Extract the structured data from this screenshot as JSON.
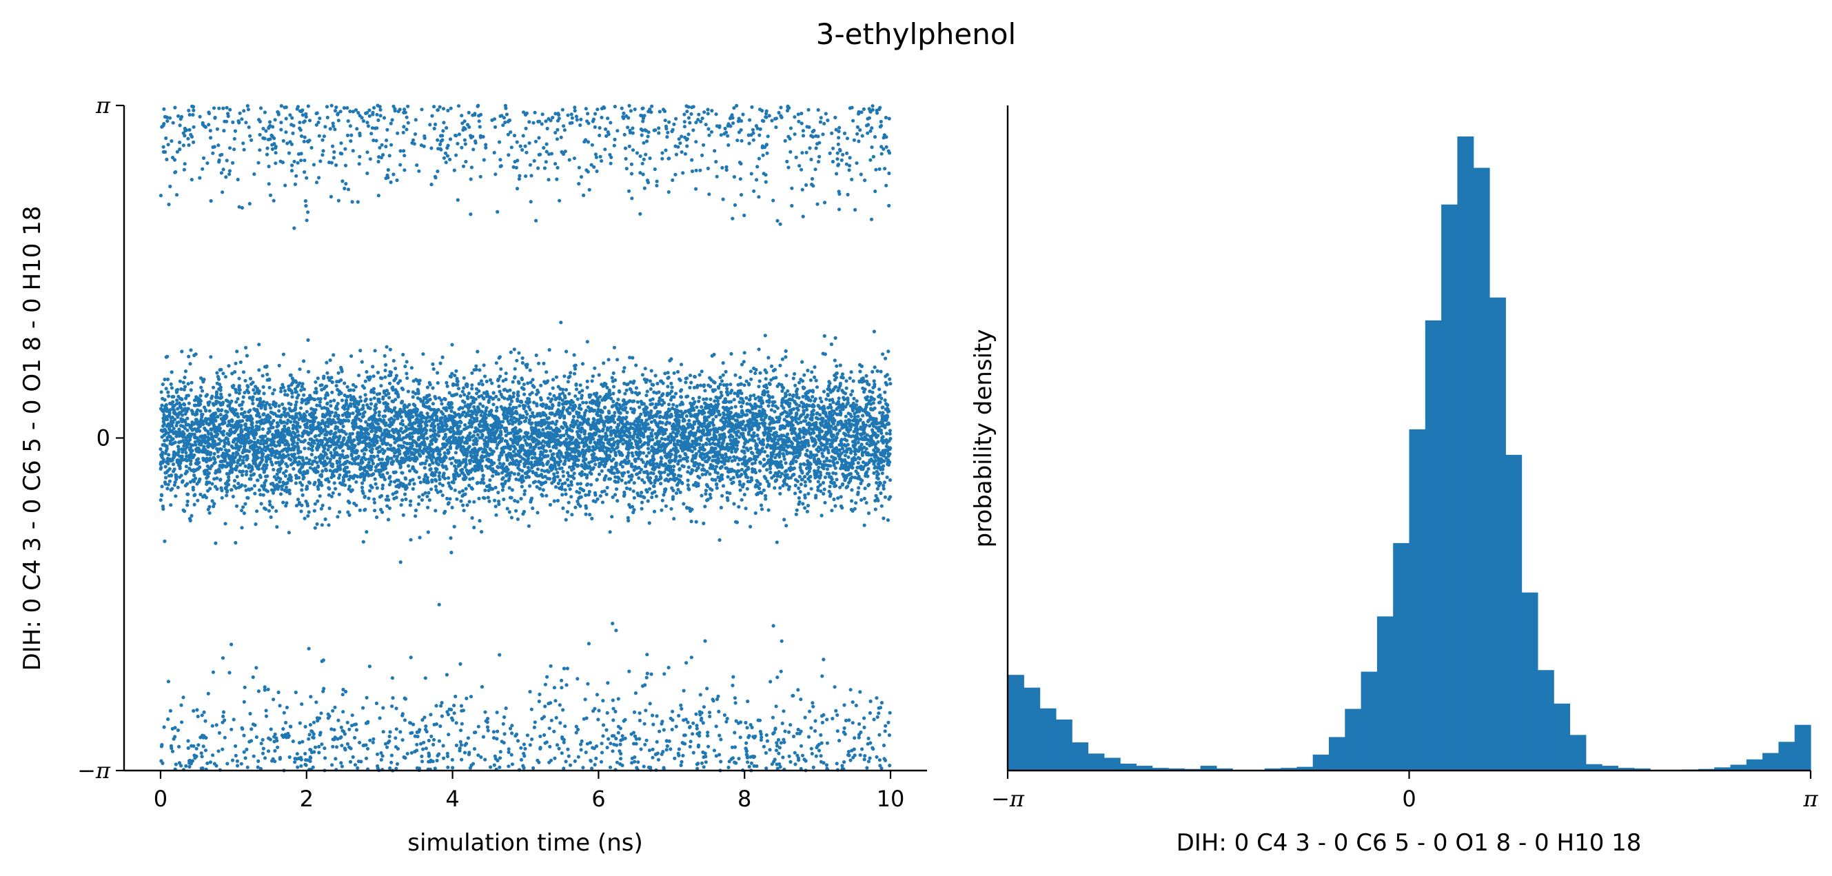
{
  "title": "3-ethylphenol",
  "chart_data": [
    {
      "type": "scatter",
      "xlabel": "simulation time (ns)",
      "ylabel": "DIH:  0 C4 3 -  0 C6 5 -  0 O1 8 -  0 H10 18",
      "xlim": [
        -0.5,
        10.5
      ],
      "ylim": [
        -3.14159,
        3.14159
      ],
      "x_ticks": [
        0,
        2,
        4,
        6,
        8,
        10
      ],
      "x_tick_labels": [
        "0",
        "2",
        "4",
        "6",
        "8",
        "10"
      ],
      "y_ticks": [
        -3.14159,
        0,
        3.14159
      ],
      "y_tick_labels": [
        "−π",
        "0",
        "π"
      ],
      "grid": false,
      "color": "#1f77b4",
      "n_frames": 10000,
      "clusters": [
        {
          "center": 0.0,
          "spread": 0.55,
          "fraction": 0.8
        },
        {
          "center": 3.14159,
          "spread": 0.42,
          "fraction": 0.2
        }
      ]
    },
    {
      "type": "bar",
      "xlabel": "DIH:  0 C4 3 -  0 C6 5 -  0 O1 8 -  0 H10 18",
      "ylabel": "probability density",
      "xlim": [
        -3.14159,
        3.14159
      ],
      "x_ticks": [
        -3.14159,
        0,
        3.14159
      ],
      "x_tick_labels": [
        "−π",
        "0",
        "π"
      ],
      "grid": false,
      "color": "#1f77b4",
      "n_bins": 50,
      "values": [
        0.18,
        0.156,
        0.117,
        0.096,
        0.053,
        0.032,
        0.024,
        0.013,
        0.009,
        0.005,
        0.004,
        0.003,
        0.009,
        0.004,
        0.001,
        0.001,
        0.004,
        0.005,
        0.007,
        0.03,
        0.063,
        0.116,
        0.186,
        0.29,
        0.428,
        0.642,
        0.847,
        1.065,
        1.193,
        1.134,
        0.89,
        0.594,
        0.335,
        0.189,
        0.126,
        0.067,
        0.012,
        0.009,
        0.005,
        0.004,
        0.001,
        0.001,
        0.002,
        0.003,
        0.006,
        0.011,
        0.021,
        0.033,
        0.054,
        0.086
      ]
    }
  ]
}
